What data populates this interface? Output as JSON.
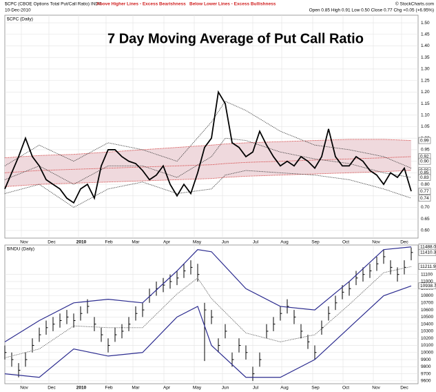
{
  "header": {
    "symbol": "$CPC (CBOE Options Total Put/Call Ratio) INDX",
    "date": "10-Dec-2010",
    "note_high": "Above Higher Lines - Excess Bearishness",
    "note_low": "Below Lower Lines - Excess Bullishness",
    "copyright": "© StockCharts.com",
    "quote": "Open 0.85 High 0.91 Low 0.50 Close 0.77 Chg +0.05 (+6.95%)"
  },
  "chart_data": [
    {
      "type": "line",
      "title": "7 Day Moving Average of Put Call Ratio",
      "label": "$CPC (Daily)",
      "xlim": [
        0,
        60
      ],
      "ylim": [
        0.567,
        1.533
      ],
      "grid": true,
      "xticks": [
        {
          "value": 2.8,
          "label": "Nov"
        },
        {
          "value": 6.8,
          "label": "Dec"
        },
        {
          "value": 11.1,
          "label": "2010"
        },
        {
          "value": 15.1,
          "label": "Feb"
        },
        {
          "value": 19,
          "label": "Mar"
        },
        {
          "value": 23.5,
          "label": "Apr"
        },
        {
          "value": 27.9,
          "label": "May"
        },
        {
          "value": 32,
          "label": "Jun"
        },
        {
          "value": 36.4,
          "label": "Jul"
        },
        {
          "value": 40.6,
          "label": "Aug"
        },
        {
          "value": 45.1,
          "label": "Sep"
        },
        {
          "value": 49.5,
          "label": "Oct"
        },
        {
          "value": 53.9,
          "label": "Nov"
        },
        {
          "value": 58,
          "label": "Dec"
        }
      ],
      "yticks": [
        {
          "value": 0.6,
          "label": "0.60"
        },
        0.65,
        {
          "value": 0.7,
          "label": "0.70"
        },
        0.75,
        {
          "value": 0.8,
          "label": "0.80"
        },
        0.85,
        {
          "value": 0.9,
          "label": "0.90"
        },
        0.95,
        {
          "value": 1,
          "label": "1.00"
        },
        1.05,
        {
          "value": 1.1,
          "label": "1.10"
        },
        1.15,
        {
          "value": 1.2,
          "label": "1.20"
        },
        1.25,
        {
          "value": 1.3,
          "label": "1.30"
        },
        1.35,
        {
          "value": 1.4,
          "label": "1.40"
        },
        1.45,
        {
          "value": 1.5,
          "label": "1.50"
        }
      ],
      "x": [
        0,
        1,
        2,
        3,
        4,
        5,
        6,
        7,
        8,
        9,
        10,
        11,
        12,
        13,
        14,
        15,
        16,
        17,
        18,
        19,
        20,
        21,
        22,
        23,
        24,
        25,
        26,
        27,
        28,
        29,
        30,
        31,
        32,
        33,
        34,
        35,
        36,
        37,
        38,
        39,
        40,
        41,
        42,
        43,
        44,
        45,
        46,
        47,
        48,
        49,
        50,
        51,
        52,
        53,
        54,
        55,
        56,
        57,
        58,
        59
      ],
      "series": [
        {
          "color": "#d03030",
          "style": "dotted",
          "fill_to_next": "#efd9dd",
          "x": [
            0,
            5,
            10,
            15,
            20,
            25,
            30,
            32,
            35,
            40,
            45,
            50,
            55,
            59
          ],
          "values": [
            0.915,
            0.925,
            0.93,
            0.94,
            0.95,
            0.96,
            0.97,
            0.975,
            0.98,
            0.985,
            0.99,
            0.995,
            0.995,
            0.99
          ]
        },
        {
          "color": "#d03030",
          "style": "dotted",
          "x": [
            0,
            5,
            10,
            15,
            20,
            25,
            30,
            32,
            35,
            40,
            45,
            50,
            55,
            59
          ],
          "values": [
            0.79,
            0.8,
            0.805,
            0.81,
            0.815,
            0.82,
            0.825,
            0.83,
            0.835,
            0.84,
            0.845,
            0.85,
            0.855,
            0.86
          ]
        },
        {
          "color": "#d03030",
          "style": "dotted",
          "x": [
            0,
            5,
            10,
            15,
            20,
            25,
            30,
            32,
            35,
            40,
            45,
            50,
            55,
            59
          ],
          "values": [
            0.85,
            0.86,
            0.865,
            0.87,
            0.875,
            0.88,
            0.885,
            0.89,
            0.895,
            0.9,
            0.905,
            0.91,
            0.915,
            0.92
          ]
        },
        {
          "color": "#333333",
          "style": "dotted",
          "x": [
            0,
            5,
            10,
            15,
            20,
            25,
            30,
            32,
            35,
            40,
            45,
            50,
            55,
            59
          ],
          "values": [
            0.88,
            0.97,
            0.9,
            0.98,
            0.95,
            0.9,
            1.07,
            1.16,
            1.12,
            1.03,
            0.97,
            0.95,
            0.92,
            0.87
          ]
        },
        {
          "color": "#333333",
          "style": "dotted",
          "x": [
            0,
            5,
            10,
            15,
            20,
            25,
            30,
            32,
            35,
            40,
            45,
            50,
            55,
            59
          ],
          "values": [
            0.82,
            0.88,
            0.8,
            0.88,
            0.88,
            0.83,
            0.92,
            1.0,
            0.99,
            0.94,
            0.91,
            0.89,
            0.85,
            0.83
          ]
        },
        {
          "color": "#333333",
          "style": "dotted",
          "x": [
            0,
            5,
            10,
            15,
            20,
            25,
            30,
            32,
            35,
            40,
            45,
            50,
            55,
            59
          ],
          "values": [
            0.76,
            0.8,
            0.7,
            0.78,
            0.81,
            0.76,
            0.78,
            0.84,
            0.86,
            0.85,
            0.84,
            0.82,
            0.78,
            0.74
          ]
        },
        {
          "color": "#000000",
          "width": 1.8,
          "values": [
            0.78,
            0.85,
            0.92,
            1.0,
            0.92,
            0.88,
            0.82,
            0.8,
            0.78,
            0.74,
            0.72,
            0.78,
            0.8,
            0.74,
            0.88,
            0.95,
            0.95,
            0.92,
            0.9,
            0.89,
            0.86,
            0.82,
            0.84,
            0.88,
            0.8,
            0.75,
            0.8,
            0.76,
            0.85,
            0.96,
            1.0,
            1.2,
            1.15,
            0.98,
            0.96,
            0.92,
            0.94,
            1.03,
            0.97,
            0.92,
            0.88,
            0.9,
            0.88,
            0.92,
            0.9,
            0.87,
            0.92,
            1.04,
            0.92,
            0.88,
            0.88,
            0.92,
            0.9,
            0.86,
            0.84,
            0.8,
            0.85,
            0.83,
            0.87,
            0.77
          ]
        }
      ],
      "annotations": [
        0.99,
        0.92,
        {
          "value": 0.9,
          "label": "0.90"
        },
        0.86,
        0.85,
        0.83,
        0.77,
        0.74
      ]
    },
    {
      "type": "hlc",
      "label": "$INDU (Daily)",
      "xlim": [
        0,
        60
      ],
      "ylim": [
        9560,
        11515
      ],
      "grid": true,
      "color": "#000000",
      "xticks": [
        {
          "value": 2.8,
          "label": "Nov"
        },
        {
          "value": 6.8,
          "label": "Dec"
        },
        {
          "value": 11.1,
          "label": "2010"
        },
        {
          "value": 15.1,
          "label": "Feb"
        },
        {
          "value": 19,
          "label": "Mar"
        },
        {
          "value": 23.5,
          "label": "Apr"
        },
        {
          "value": 27.9,
          "label": "May"
        },
        {
          "value": 32,
          "label": "Jun"
        },
        {
          "value": 36.4,
          "label": "Jul"
        },
        {
          "value": 40.6,
          "label": "Aug"
        },
        {
          "value": 45.1,
          "label": "Sep"
        },
        {
          "value": 49.5,
          "label": "Oct"
        },
        {
          "value": 53.9,
          "label": "Nov"
        },
        {
          "value": 58,
          "label": "Dec"
        }
      ],
      "yticks": [
        9600,
        9700,
        9800,
        9900,
        10000,
        10100,
        10200,
        10300,
        10400,
        10500,
        10600,
        10700,
        10800,
        10900,
        11000,
        11100
      ],
      "x": [
        0,
        1,
        2,
        3,
        4,
        5,
        6,
        7,
        8,
        9,
        10,
        11,
        12,
        13,
        14,
        15,
        16,
        17,
        18,
        19,
        20,
        21,
        22,
        23,
        24,
        25,
        26,
        27,
        28,
        29,
        30,
        31,
        32,
        33,
        34,
        35,
        36,
        37,
        38,
        39,
        40,
        41,
        42,
        43,
        44,
        45,
        46,
        47,
        48,
        49,
        50,
        51,
        52,
        53,
        54,
        55,
        56,
        57,
        58,
        59
      ],
      "high": [
        10100,
        10000,
        9850,
        10000,
        10200,
        10350,
        10450,
        10500,
        10550,
        10600,
        10550,
        10650,
        10750,
        10500,
        10350,
        10200,
        10350,
        10400,
        10500,
        10650,
        10700,
        10900,
        11000,
        11050,
        11100,
        11150,
        11250,
        11300,
        11250,
        10700,
        10600,
        10200,
        10400,
        10000,
        10200,
        10100,
        9800,
        10000,
        10400,
        10500,
        10650,
        10750,
        10600,
        10400,
        10250,
        10100,
        10450,
        10650,
        10800,
        10950,
        11000,
        11150,
        11200,
        11250,
        11350,
        11450,
        11300,
        11200,
        11300,
        11480
      ],
      "low": [
        9900,
        9800,
        9650,
        9800,
        10000,
        10150,
        10250,
        10300,
        10350,
        10400,
        10350,
        10450,
        10550,
        10300,
        10150,
        10000,
        10150,
        10200,
        10300,
        10450,
        10500,
        10700,
        10800,
        10850,
        10900,
        10950,
        11050,
        11100,
        11000,
        9880,
        10400,
        10000,
        10200,
        9800,
        10000,
        9900,
        9600,
        9800,
        10200,
        10300,
        10450,
        10550,
        10400,
        10200,
        10050,
        9900,
        10250,
        10450,
        10600,
        10750,
        10800,
        10950,
        11000,
        11050,
        11150,
        11250,
        11100,
        11000,
        11100,
        11300
      ],
      "close": [
        10000,
        9900,
        9750,
        9900,
        10100,
        10250,
        10350,
        10400,
        10450,
        10500,
        10450,
        10550,
        10650,
        10400,
        10250,
        10100,
        10250,
        10300,
        10400,
        10550,
        10600,
        10800,
        10900,
        10950,
        11000,
        11050,
        11150,
        11200,
        11100,
        10600,
        10500,
        10100,
        10300,
        9900,
        10100,
        10000,
        9700,
        9900,
        10300,
        10400,
        10550,
        10650,
        10500,
        10300,
        10150,
        10000,
        10350,
        10550,
        10700,
        10850,
        10900,
        11050,
        11100,
        11150,
        11250,
        11350,
        11200,
        11100,
        11200,
        11410
      ],
      "series": [
        {
          "color": "#2b2b8f",
          "width": 1.2,
          "x": [
            0,
            5,
            10,
            15,
            20,
            25,
            28,
            30,
            35,
            40,
            45,
            50,
            55,
            59
          ],
          "values": [
            10150,
            10450,
            10700,
            10750,
            10700,
            11150,
            11450,
            11420,
            10900,
            10650,
            10600,
            11000,
            11450,
            11488
          ]
        },
        {
          "color": "#555555",
          "style": "dotted",
          "x": [
            0,
            5,
            10,
            15,
            20,
            25,
            28,
            30,
            35,
            40,
            45,
            50,
            55,
            59
          ],
          "values": [
            9925,
            10050,
            10375,
            10350,
            10350,
            10825,
            11050,
            10760,
            10275,
            10150,
            10250,
            10675,
            11125,
            11211
          ]
        },
        {
          "color": "#2b2b8f",
          "width": 1.2,
          "x": [
            0,
            5,
            10,
            15,
            20,
            25,
            28,
            30,
            35,
            40,
            45,
            50,
            55,
            59
          ],
          "values": [
            9700,
            9650,
            10050,
            9950,
            10000,
            10500,
            10650,
            10100,
            9650,
            9650,
            9900,
            10350,
            10800,
            10938
          ]
        }
      ],
      "annotations": [
        11488.04,
        11410.32,
        11211.93,
        10938.75
      ]
    }
  ]
}
